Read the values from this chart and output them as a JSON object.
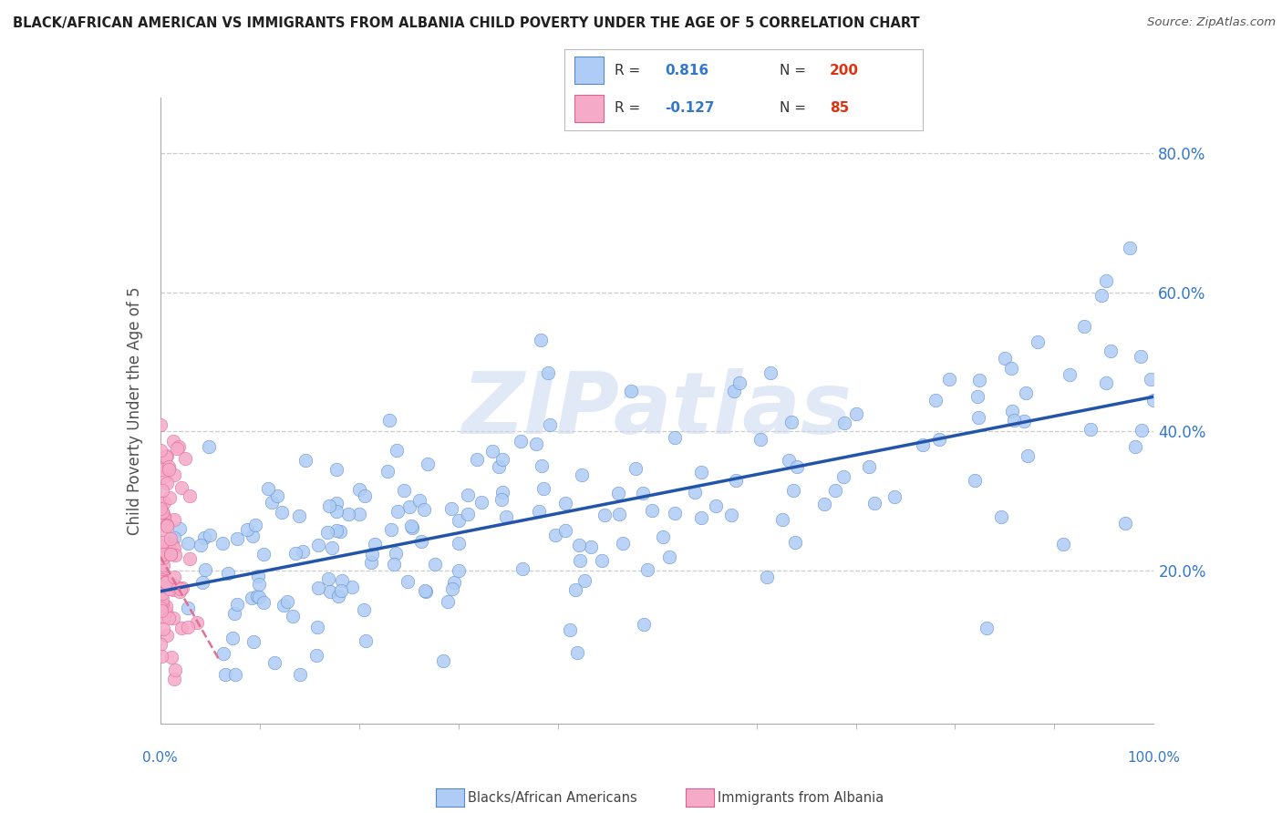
{
  "title": "BLACK/AFRICAN AMERICAN VS IMMIGRANTS FROM ALBANIA CHILD POVERTY UNDER THE AGE OF 5 CORRELATION CHART",
  "source": "Source: ZipAtlas.com",
  "ylabel": "Child Poverty Under the Age of 5",
  "xlim": [
    0,
    1.0
  ],
  "ylim": [
    -0.02,
    0.88
  ],
  "ytick_vals": [
    0.2,
    0.4,
    0.6,
    0.8
  ],
  "ytick_labels": [
    "20.0%",
    "40.0%",
    "60.0%",
    "80.0%"
  ],
  "xtick_left_label": "0.0%",
  "xtick_right_label": "100.0%",
  "blue_R": 0.816,
  "blue_N": 200,
  "pink_R": -0.127,
  "pink_N": 85,
  "blue_color": "#aeccf5",
  "pink_color": "#f5aac8",
  "blue_edge_color": "#5588cc",
  "pink_edge_color": "#e06090",
  "blue_line_color": "#2255aa",
  "pink_line_color": "#e07090",
  "watermark_color": "#c8d8ee",
  "watermark_text": "ZIPatlas",
  "background_color": "#ffffff",
  "grid_color": "#cccccc",
  "title_color": "#202020",
  "legend_R_color": "#3377cc",
  "legend_N_color": "#dd3311",
  "axis_label_color": "#3377cc",
  "blue_seed": 42,
  "pink_seed": 99
}
